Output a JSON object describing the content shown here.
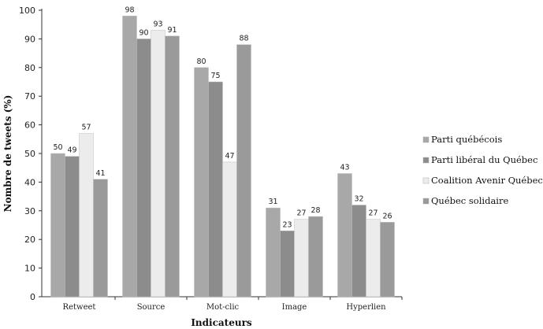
{
  "chart_data": {
    "type": "bar",
    "title": "",
    "xlabel": "Indicateurs",
    "ylabel": "Nombre de tweets (%)",
    "ylim": [
      0,
      100
    ],
    "yticks": [
      0,
      10,
      20,
      30,
      40,
      50,
      60,
      70,
      80,
      90,
      100
    ],
    "grid": false,
    "legend_position": "right",
    "categories": [
      "Retweet",
      "Source",
      "Mot-clic",
      "Image",
      "Hyperlien"
    ],
    "series": [
      {
        "name": "Parti québécois",
        "color": "#a8a8a8",
        "values": [
          50,
          98,
          80,
          31,
          43
        ]
      },
      {
        "name": "Parti libéral du Québec",
        "color": "#8c8c8c",
        "values": [
          49,
          90,
          75,
          23,
          32
        ]
      },
      {
        "name": "Coalition Avenir Québec",
        "color": "#ececec",
        "values": [
          57,
          93,
          47,
          27,
          27
        ]
      },
      {
        "name": "Québec solidaire",
        "color": "#9a9a9a",
        "values": [
          41,
          91,
          88,
          28,
          26
        ]
      }
    ]
  }
}
